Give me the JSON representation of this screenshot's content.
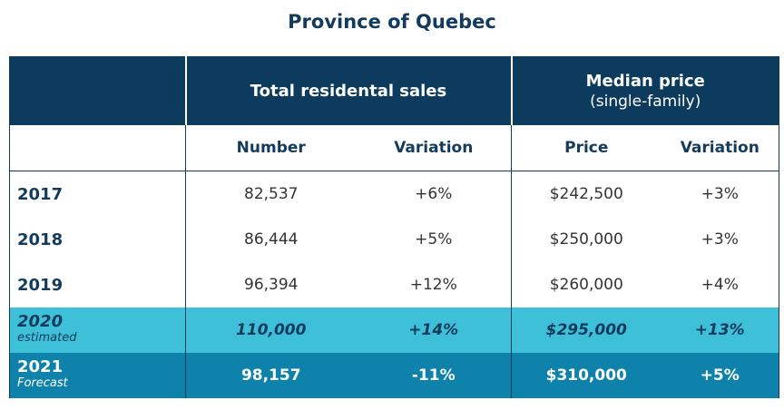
{
  "title": "Province of Quebec",
  "table": {
    "group_headers": [
      {
        "title": "Total residental sales"
      },
      {
        "title": "Median price",
        "subtitle": "(single-family)"
      }
    ],
    "columns": [
      "Number",
      "Variation",
      "Price",
      "Variation"
    ],
    "rows": [
      {
        "year": "2017",
        "cells": [
          "82,537",
          "+6%",
          "$242,500",
          "+3%"
        ]
      },
      {
        "year": "2018",
        "cells": [
          "86,444",
          "+5%",
          "$250,000",
          "+3%"
        ]
      },
      {
        "year": "2019",
        "cells": [
          "96,394",
          "+12%",
          "$260,000",
          "+4%"
        ]
      },
      {
        "year": "2020",
        "note": "estimated",
        "cells": [
          "110,000",
          "+14%",
          "$295,000",
          "+13%"
        ]
      },
      {
        "year": "2021",
        "note": "Forecast",
        "cells": [
          "98,157",
          "-11%",
          "$310,000",
          "+5%"
        ]
      }
    ]
  }
}
